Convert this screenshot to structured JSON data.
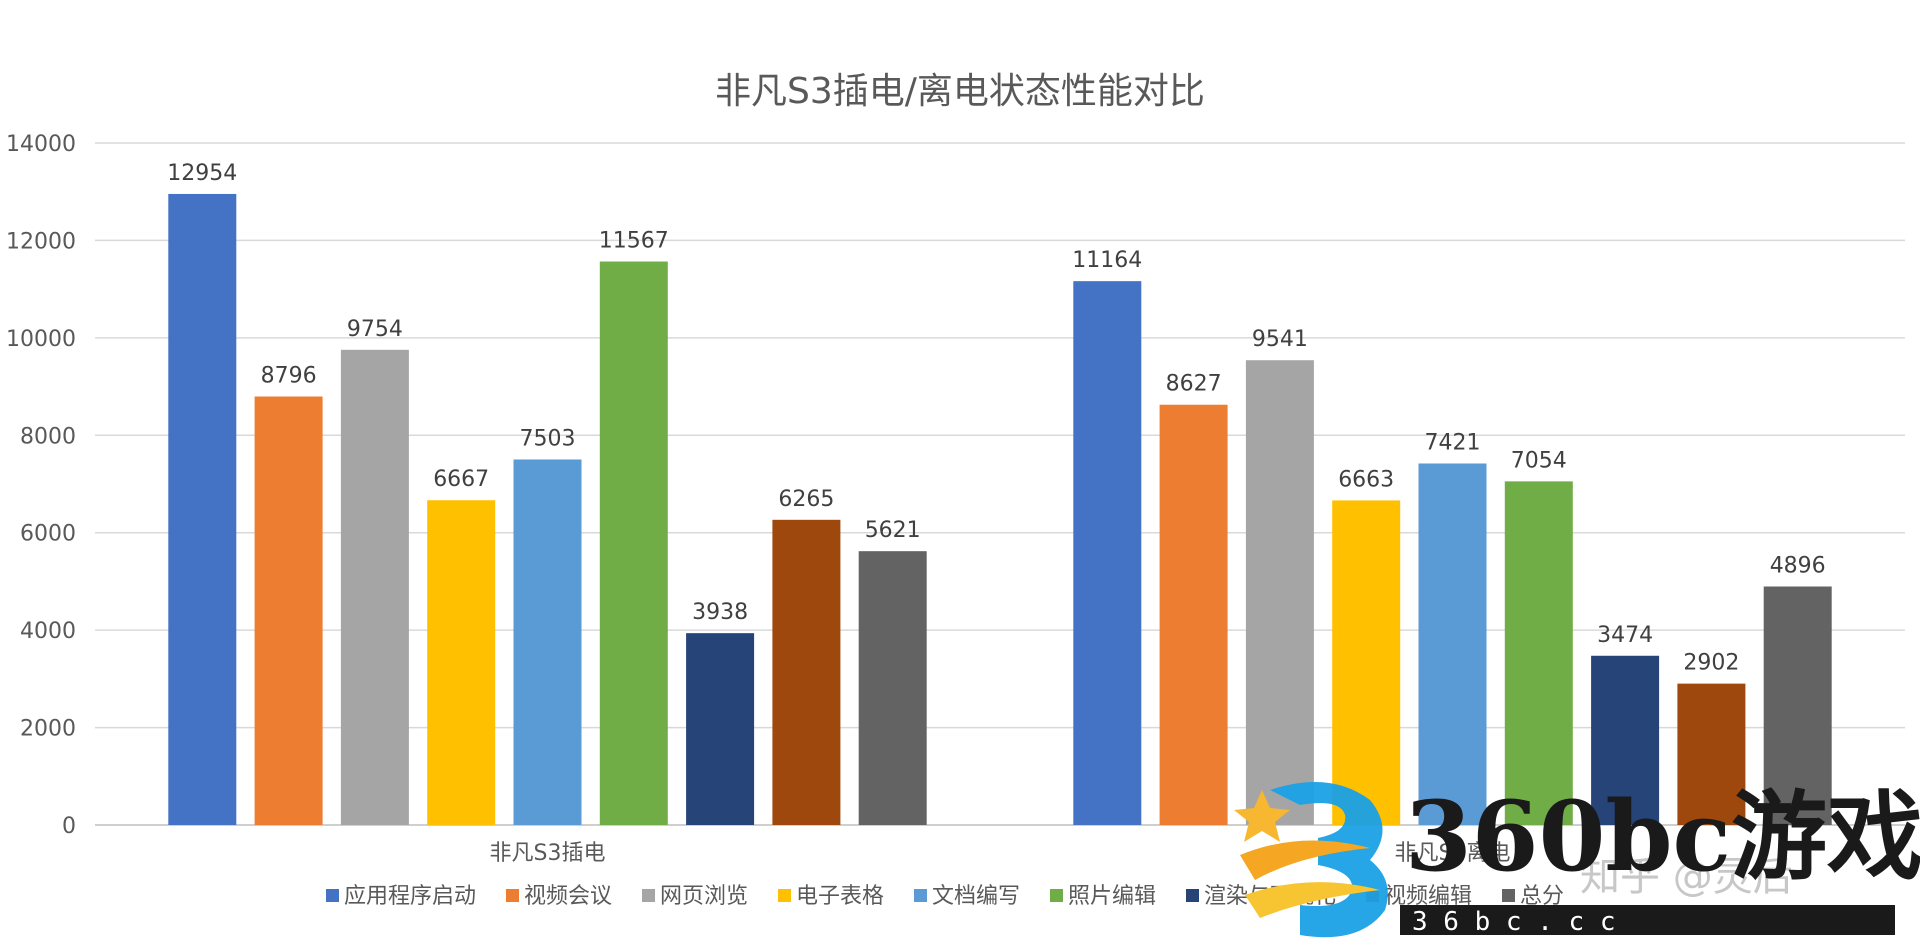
{
  "chart_data": {
    "type": "bar",
    "title": "非凡S3插电/离电状态性能对比",
    "xlabel": "",
    "ylabel": "",
    "categories": [
      "非凡S3插电",
      "非凡S3离电"
    ],
    "ylim": [
      0,
      14000
    ],
    "yticks": [
      0,
      2000,
      4000,
      6000,
      8000,
      10000,
      12000,
      14000
    ],
    "yticks_labels": [
      "0",
      "2000",
      "4000",
      "6000",
      "8000",
      "10000",
      "12000",
      "14000"
    ],
    "grid": true,
    "legend_position": "bottom",
    "series": [
      {
        "name": "应用程序启动",
        "color": "#4472C4",
        "values": [
          12954,
          11164
        ],
        "labels": [
          "12954",
          "11164"
        ]
      },
      {
        "name": "视频会议",
        "color": "#ED7D31",
        "values": [
          8796,
          8627
        ],
        "labels": [
          "8796",
          "8627"
        ]
      },
      {
        "name": "网页浏览",
        "color": "#A5A5A5",
        "values": [
          9754,
          9541
        ],
        "labels": [
          "9754",
          "9541"
        ]
      },
      {
        "name": "电子表格",
        "color": "#FFC000",
        "values": [
          6667,
          6663
        ],
        "labels": [
          "6667",
          "6663"
        ]
      },
      {
        "name": "文档编写",
        "color": "#5B9BD5",
        "values": [
          7503,
          7421
        ],
        "labels": [
          "7503",
          "7421"
        ]
      },
      {
        "name": "照片编辑",
        "color": "#70AD47",
        "values": [
          11567,
          7054
        ],
        "labels": [
          "11567",
          "7054"
        ]
      },
      {
        "name": "渲染与可视化",
        "color": "#264478",
        "values": [
          3938,
          3474
        ],
        "labels": [
          "3938",
          "3474"
        ]
      },
      {
        "name": "视频编辑",
        "color": "#9E480E",
        "values": [
          6265,
          2902
        ],
        "labels": [
          "6265",
          "2902"
        ]
      },
      {
        "name": "总分",
        "color": "#636363",
        "values": [
          5621,
          4896
        ],
        "labels": [
          "5621",
          "4896"
        ]
      }
    ]
  },
  "watermark": {
    "logo_icon": "b-star-logo-icon",
    "brand": "360bc游戏",
    "domain": "3 6 b c . c c",
    "faint": "知乎 @灵后"
  }
}
